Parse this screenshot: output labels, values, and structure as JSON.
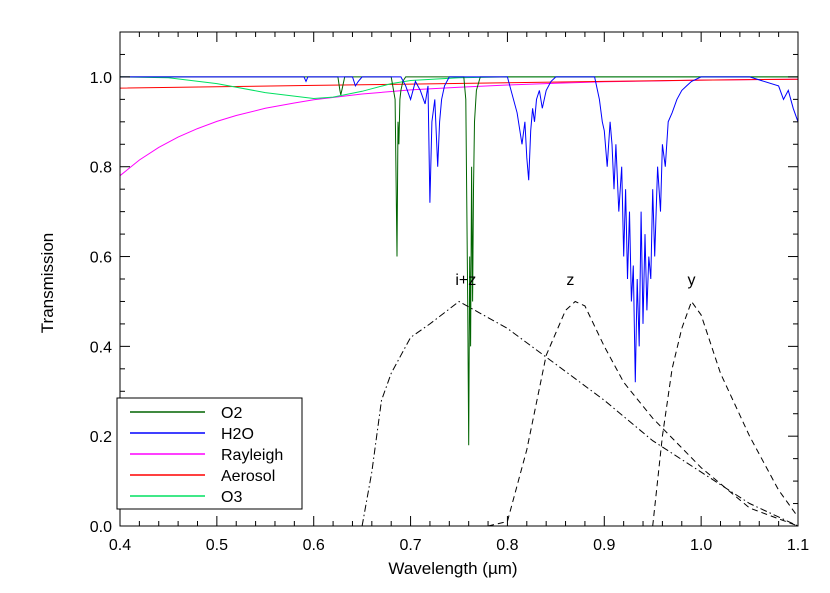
{
  "chart_data": {
    "type": "line",
    "title": "",
    "xlabel": "Wavelength (µm)",
    "ylabel": "Transmission",
    "xlim": [
      0.4,
      1.1
    ],
    "ylim": [
      0.0,
      1.1
    ],
    "x_ticks": [
      0.4,
      0.5,
      0.6,
      0.7,
      0.8,
      0.9,
      1.0,
      1.1
    ],
    "x_tick_labels": [
      "0.4",
      "0.5",
      "0.6",
      "0.7",
      "0.8",
      "0.9",
      "1.0",
      "1.1"
    ],
    "y_ticks": [
      0.0,
      0.2,
      0.4,
      0.6,
      0.8,
      1.0
    ],
    "y_tick_labels": [
      "0.0",
      "0.2",
      "0.4",
      "0.6",
      "0.8",
      "1.0"
    ],
    "grid": false,
    "legend_position": "bottom-left",
    "legend": [
      {
        "name": "O2",
        "color": "#006400"
      },
      {
        "name": "H2O",
        "color": "#0000ff"
      },
      {
        "name": "Rayleigh",
        "color": "#ff00ff"
      },
      {
        "name": "Aerosol",
        "color": "#ff0000"
      },
      {
        "name": "O3",
        "color": "#00e060"
      }
    ],
    "series": [
      {
        "name": "Rayleigh",
        "color": "#ff00ff",
        "style": "solid",
        "x": [
          0.4,
          0.42,
          0.44,
          0.46,
          0.48,
          0.5,
          0.52,
          0.55,
          0.58,
          0.6,
          0.65,
          0.7,
          0.75,
          0.8,
          0.85,
          0.9,
          0.95,
          1.0,
          1.05,
          1.1
        ],
        "y": [
          0.78,
          0.815,
          0.843,
          0.866,
          0.885,
          0.901,
          0.914,
          0.93,
          0.942,
          0.949,
          0.962,
          0.971,
          0.977,
          0.982,
          0.986,
          0.989,
          0.991,
          0.993,
          0.994,
          0.995
        ]
      },
      {
        "name": "Aerosol",
        "color": "#ff0000",
        "style": "solid",
        "x": [
          0.4,
          0.5,
          0.6,
          0.7,
          0.8,
          0.9,
          1.0,
          1.1
        ],
        "y": [
          0.975,
          0.978,
          0.981,
          0.984,
          0.987,
          0.99,
          0.993,
          0.995
        ]
      },
      {
        "name": "O3",
        "color": "#00e060",
        "style": "solid",
        "x": [
          0.4,
          0.45,
          0.5,
          0.55,
          0.6,
          0.62,
          0.65,
          0.68,
          0.7,
          0.75,
          0.8,
          1.1
        ],
        "y": [
          1.0,
          0.998,
          0.985,
          0.965,
          0.952,
          0.955,
          0.968,
          0.985,
          0.992,
          0.998,
          1.0,
          1.0
        ]
      },
      {
        "name": "O2",
        "color": "#006400",
        "style": "solid",
        "x": [
          0.4,
          0.625,
          0.627,
          0.628,
          0.63,
          0.632,
          0.68,
          0.684,
          0.686,
          0.687,
          0.688,
          0.689,
          0.69,
          0.692,
          0.695,
          0.755,
          0.757,
          0.759,
          0.76,
          0.761,
          0.762,
          0.763,
          0.764,
          0.765,
          0.766,
          0.768,
          0.772,
          1.1
        ],
        "y": [
          1.0,
          1.0,
          0.97,
          0.96,
          0.98,
          1.0,
          1.0,
          0.95,
          0.6,
          0.9,
          0.85,
          0.95,
          0.97,
          0.99,
          1.0,
          1.0,
          0.95,
          0.5,
          0.18,
          0.6,
          0.4,
          0.8,
          0.5,
          0.75,
          0.9,
          0.97,
          1.0,
          1.0
        ]
      },
      {
        "name": "H2O",
        "color": "#0000ff",
        "style": "solid",
        "x": [
          0.4,
          0.59,
          0.592,
          0.594,
          0.596,
          0.64,
          0.643,
          0.646,
          0.65,
          0.69,
          0.695,
          0.7,
          0.705,
          0.71,
          0.715,
          0.718,
          0.72,
          0.722,
          0.725,
          0.728,
          0.73,
          0.732,
          0.735,
          0.74,
          0.8,
          0.81,
          0.815,
          0.818,
          0.82,
          0.822,
          0.824,
          0.826,
          0.828,
          0.83,
          0.833,
          0.836,
          0.84,
          0.845,
          0.85,
          0.89,
          0.895,
          0.898,
          0.9,
          0.903,
          0.906,
          0.908,
          0.91,
          0.912,
          0.915,
          0.918,
          0.92,
          0.922,
          0.924,
          0.926,
          0.928,
          0.93,
          0.932,
          0.934,
          0.936,
          0.938,
          0.94,
          0.942,
          0.944,
          0.946,
          0.948,
          0.95,
          0.952,
          0.955,
          0.958,
          0.96,
          0.963,
          0.966,
          0.97,
          0.975,
          0.98,
          0.985,
          0.99,
          1.0,
          1.05,
          1.08,
          1.085,
          1.09,
          1.095,
          1.1
        ],
        "y": [
          1.0,
          1.0,
          0.99,
          1.0,
          1.0,
          1.0,
          0.98,
          0.99,
          1.0,
          1.0,
          0.98,
          0.95,
          0.99,
          0.97,
          0.94,
          0.98,
          0.72,
          0.9,
          0.95,
          0.8,
          0.9,
          0.95,
          0.98,
          1.0,
          1.0,
          0.92,
          0.85,
          0.9,
          0.82,
          0.77,
          0.88,
          0.93,
          0.9,
          0.95,
          0.97,
          0.93,
          0.97,
          0.99,
          1.0,
          1.0,
          0.95,
          0.9,
          0.88,
          0.8,
          0.9,
          0.85,
          0.75,
          0.85,
          0.7,
          0.8,
          0.6,
          0.75,
          0.55,
          0.7,
          0.5,
          0.58,
          0.32,
          0.55,
          0.4,
          0.7,
          0.45,
          0.65,
          0.48,
          0.6,
          0.55,
          0.75,
          0.6,
          0.8,
          0.7,
          0.85,
          0.8,
          0.9,
          0.92,
          0.95,
          0.97,
          0.98,
          0.99,
          1.0,
          1.0,
          0.98,
          0.95,
          0.97,
          0.93,
          0.9
        ]
      },
      {
        "name": "i+z",
        "color": "#000000",
        "style": "dashdot",
        "x": [
          0.65,
          0.66,
          0.67,
          0.68,
          0.69,
          0.7,
          0.72,
          0.75,
          0.8,
          0.85,
          0.9,
          0.95,
          1.0,
          1.05,
          1.1
        ],
        "y": [
          0.0,
          0.12,
          0.28,
          0.34,
          0.38,
          0.42,
          0.45,
          0.5,
          0.44,
          0.36,
          0.28,
          0.19,
          0.12,
          0.05,
          0.0
        ]
      },
      {
        "name": "z",
        "color": "#000000",
        "style": "dashed",
        "x": [
          0.78,
          0.8,
          0.82,
          0.84,
          0.86,
          0.87,
          0.88,
          0.9,
          0.92,
          0.95,
          1.0,
          1.05,
          1.1
        ],
        "y": [
          0.0,
          0.01,
          0.17,
          0.38,
          0.48,
          0.5,
          0.49,
          0.4,
          0.32,
          0.24,
          0.13,
          0.04,
          0.0
        ]
      },
      {
        "name": "y",
        "color": "#000000",
        "style": "dashed",
        "x": [
          0.95,
          0.96,
          0.97,
          0.98,
          0.99,
          1.0,
          1.02,
          1.05,
          1.08,
          1.1
        ],
        "y": [
          0.0,
          0.2,
          0.35,
          0.44,
          0.5,
          0.47,
          0.34,
          0.2,
          0.08,
          0.02
        ]
      }
    ],
    "annotations": [
      {
        "text": "i+z",
        "x": 0.757,
        "y": 0.55
      },
      {
        "text": "z",
        "x": 0.865,
        "y": 0.55
      },
      {
        "text": "y",
        "x": 0.99,
        "y": 0.55
      }
    ]
  }
}
